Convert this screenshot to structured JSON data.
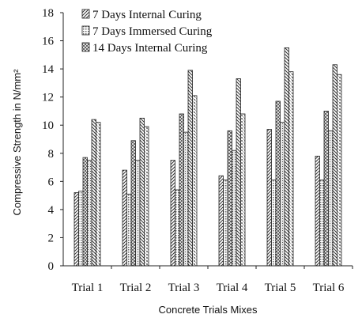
{
  "chart_data": {
    "type": "bar",
    "ylabel": "Compressive Strength in N/mm²",
    "xlabel": "Concrete Trials Mixes",
    "ylim": [
      0,
      18
    ],
    "yticks": [
      0,
      2,
      4,
      6,
      8,
      10,
      12,
      14,
      16,
      18
    ],
    "grid": false,
    "legend_position": "top-left",
    "categories": [
      "Trial 1",
      "Trial 2",
      "Trial 3",
      "Trial 4",
      "Trial 5",
      "Trial 6"
    ],
    "series": [
      {
        "name": "7 Days Internal Curing",
        "values": [
          5.2,
          6.8,
          7.5,
          6.4,
          9.7,
          7.8
        ]
      },
      {
        "name": "7 Days Immersed Curing",
        "values": [
          5.3,
          5.1,
          5.4,
          6.1,
          6.1,
          6.1
        ]
      },
      {
        "name": "14 Days Internal Curing",
        "values": [
          7.7,
          8.9,
          10.8,
          9.6,
          11.7,
          11.0
        ]
      },
      {
        "name": "",
        "values": [
          7.5,
          7.5,
          9.5,
          8.2,
          10.2,
          9.6
        ]
      },
      {
        "name": "",
        "values": [
          10.4,
          10.5,
          13.9,
          13.3,
          15.5,
          14.3
        ]
      },
      {
        "name": "",
        "values": [
          10.2,
          9.9,
          12.1,
          10.8,
          13.8,
          13.6
        ]
      }
    ],
    "legend": [
      "7 Days Internal Curing",
      "7 Days Immersed Curing",
      "14 Days Internal Curing"
    ]
  }
}
